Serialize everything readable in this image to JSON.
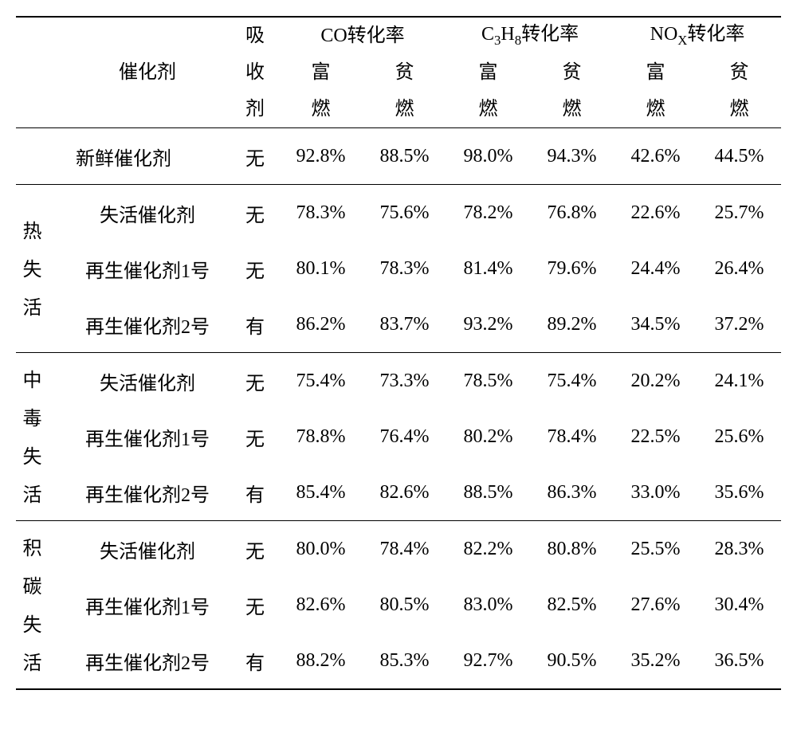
{
  "table": {
    "font_family": "SimSun",
    "font_size_pt": 18,
    "text_color": "#000000",
    "background_color": "#ffffff",
    "rule_color": "#000000",
    "header": {
      "catalyst": "催化剂",
      "absorbent": "吸收剂",
      "absorbent_c1": "吸",
      "absorbent_c2": "收",
      "absorbent_c3": "剂",
      "co_rate": "CO转化率",
      "c3h8_rate": "C₃H₈转化率",
      "nox_rate": "NOₓ转化率",
      "rich": "富燃",
      "lean": "贫燃",
      "rich_c1": "富",
      "rich_c2": "燃",
      "lean_c1": "贫",
      "lean_c2": "燃"
    },
    "fresh": {
      "label": "新鲜催化剂",
      "absorbent": "无",
      "co_rich": "92.8%",
      "co_lean": "88.5%",
      "c3h8_rich": "98.0%",
      "c3h8_lean": "94.3%",
      "nox_rich": "42.6%",
      "nox_lean": "44.5%"
    },
    "groups": [
      {
        "name": "热失活",
        "rows": [
          {
            "label": "失活催化剂",
            "absorbent": "无",
            "co_rich": "78.3%",
            "co_lean": "75.6%",
            "c3h8_rich": "78.2%",
            "c3h8_lean": "76.8%",
            "nox_rich": "22.6%",
            "nox_lean": "25.7%"
          },
          {
            "label": "再生催化剂1号",
            "absorbent": "无",
            "co_rich": "80.1%",
            "co_lean": "78.3%",
            "c3h8_rich": "81.4%",
            "c3h8_lean": "79.6%",
            "nox_rich": "24.4%",
            "nox_lean": "26.4%"
          },
          {
            "label": "再生催化剂2号",
            "absorbent": "有",
            "co_rich": "86.2%",
            "co_lean": "83.7%",
            "c3h8_rich": "93.2%",
            "c3h8_lean": "89.2%",
            "nox_rich": "34.5%",
            "nox_lean": "37.2%"
          }
        ]
      },
      {
        "name": "中毒失活",
        "rows": [
          {
            "label": "失活催化剂",
            "absorbent": "无",
            "co_rich": "75.4%",
            "co_lean": "73.3%",
            "c3h8_rich": "78.5%",
            "c3h8_lean": "75.4%",
            "nox_rich": "20.2%",
            "nox_lean": "24.1%"
          },
          {
            "label": "再生催化剂1号",
            "absorbent": "无",
            "co_rich": "78.8%",
            "co_lean": "76.4%",
            "c3h8_rich": "80.2%",
            "c3h8_lean": "78.4%",
            "nox_rich": "22.5%",
            "nox_lean": "25.6%"
          },
          {
            "label": "再生催化剂2号",
            "absorbent": "有",
            "co_rich": "85.4%",
            "co_lean": "82.6%",
            "c3h8_rich": "88.5%",
            "c3h8_lean": "86.3%",
            "nox_rich": "33.0%",
            "nox_lean": "35.6%"
          }
        ]
      },
      {
        "name": "积碳失活",
        "rows": [
          {
            "label": "失活催化剂",
            "absorbent": "无",
            "co_rich": "80.0%",
            "co_lean": "78.4%",
            "c3h8_rich": "82.2%",
            "c3h8_lean": "80.8%",
            "nox_rich": "25.5%",
            "nox_lean": "28.3%"
          },
          {
            "label": "再生催化剂1号",
            "absorbent": "无",
            "co_rich": "82.6%",
            "co_lean": "80.5%",
            "c3h8_rich": "83.0%",
            "c3h8_lean": "82.5%",
            "nox_rich": "27.6%",
            "nox_lean": "30.4%"
          },
          {
            "label": "再生催化剂2号",
            "absorbent": "有",
            "co_rich": "88.2%",
            "co_lean": "85.3%",
            "c3h8_rich": "92.7%",
            "c3h8_lean": "90.5%",
            "nox_rich": "35.2%",
            "nox_lean": "36.5%"
          }
        ]
      }
    ]
  }
}
